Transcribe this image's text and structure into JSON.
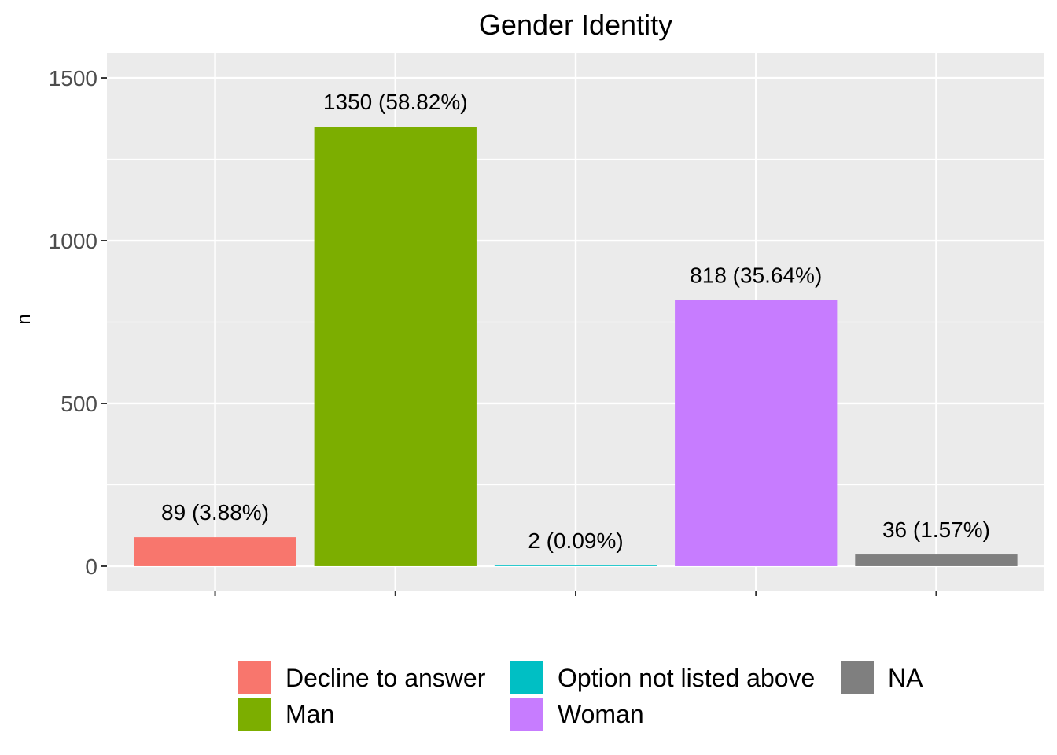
{
  "chart_data": {
    "type": "bar",
    "title": "Gender Identity",
    "xlabel": "",
    "ylabel": "n",
    "ylim": [
      -75,
      1575
    ],
    "yticks": [
      0,
      500,
      1000,
      1500
    ],
    "grid": true,
    "legend_position": "bottom",
    "categories": [
      "Decline to answer",
      "Man",
      "Option not listed above",
      "Woman",
      "NA"
    ],
    "values": [
      89,
      1350,
      2,
      818,
      36
    ],
    "labels": [
      "89 (3.88%)",
      "1350 (58.82%)",
      "2 (0.09%)",
      "818 (35.64%)",
      "36 (1.57%)"
    ],
    "colors": [
      "#F8766D",
      "#7CAE00",
      "#00BFC4",
      "#C77CFF",
      "#7F7F7F"
    ],
    "legend": {
      "columns": [
        [
          "Decline to answer",
          "Man"
        ],
        [
          "Option not listed above",
          "Woman"
        ],
        [
          "NA"
        ]
      ]
    }
  }
}
